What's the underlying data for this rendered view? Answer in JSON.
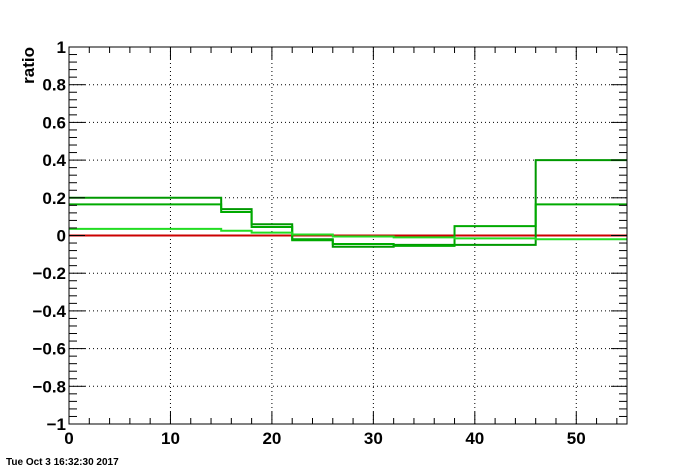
{
  "chart_data": {
    "type": "line",
    "step": true,
    "title": "",
    "xlabel": "",
    "ylabel": "ratio",
    "xlim": [
      0,
      55
    ],
    "ylim": [
      -1,
      1
    ],
    "grid": true,
    "x_ticks": [
      0,
      10,
      20,
      30,
      40,
      50
    ],
    "y_ticks": [
      -1,
      -0.8,
      -0.6,
      -0.4,
      -0.2,
      0,
      0.2,
      0.4,
      0.6,
      0.8,
      1
    ],
    "x_tick_labels": [
      "0",
      "10",
      "20",
      "30",
      "40",
      "50"
    ],
    "y_tick_labels": [
      "−1",
      "−0.8",
      "−0.6",
      "−0.4",
      "−0.2",
      "0",
      "0.2",
      "0.4",
      "0.6",
      "0.8",
      "1"
    ],
    "bin_edges": [
      0,
      15,
      18,
      22,
      26,
      32,
      38,
      46,
      55
    ],
    "series": [
      {
        "color": "#cc0000",
        "values": [
          0.0,
          0.0,
          0.0,
          0.0,
          0.0,
          0.0,
          0.0,
          0.0
        ]
      },
      {
        "color": "#009900",
        "values": [
          0.2,
          0.14,
          0.06,
          -0.02,
          -0.06,
          -0.05,
          -0.05,
          0.4
        ]
      },
      {
        "color": "#00aa00",
        "values": [
          0.165,
          0.125,
          0.045,
          -0.025,
          -0.045,
          -0.055,
          0.05,
          0.165
        ]
      },
      {
        "color": "#22dd22",
        "values": [
          0.035,
          0.025,
          0.015,
          0.005,
          -0.005,
          -0.01,
          -0.015,
          -0.02
        ]
      }
    ]
  },
  "footer": {
    "timestamp": "Tue Oct  3 16:32:30 2017"
  }
}
